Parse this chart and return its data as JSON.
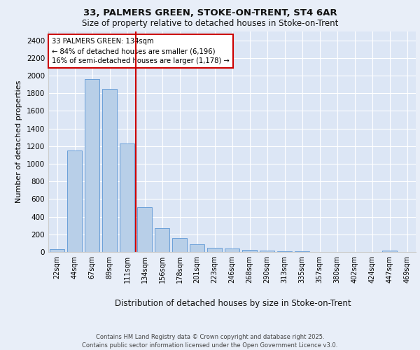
{
  "title1": "33, PALMERS GREEN, STOKE-ON-TRENT, ST4 6AR",
  "title2": "Size of property relative to detached houses in Stoke-on-Trent",
  "xlabel": "Distribution of detached houses by size in Stoke-on-Trent",
  "ylabel": "Number of detached properties",
  "categories": [
    "22sqm",
    "44sqm",
    "67sqm",
    "89sqm",
    "111sqm",
    "134sqm",
    "156sqm",
    "178sqm",
    "201sqm",
    "223sqm",
    "246sqm",
    "268sqm",
    "290sqm",
    "313sqm",
    "335sqm",
    "357sqm",
    "380sqm",
    "402sqm",
    "424sqm",
    "447sqm",
    "469sqm"
  ],
  "values": [
    28,
    1150,
    1960,
    1850,
    1230,
    510,
    270,
    155,
    90,
    48,
    38,
    22,
    12,
    5,
    5,
    2,
    2,
    1,
    1,
    18,
    0
  ],
  "bar_color": "#b8cfe8",
  "bar_edge_color": "#6a9fd8",
  "bg_color": "#dce6f5",
  "fig_color": "#e8eef8",
  "grid_color": "#ffffff",
  "vline_color": "#cc0000",
  "annotation_text": "33 PALMERS GREEN: 134sqm\n← 84% of detached houses are smaller (6,196)\n16% of semi-detached houses are larger (1,178) →",
  "ylim": [
    0,
    2500
  ],
  "yticks": [
    0,
    200,
    400,
    600,
    800,
    1000,
    1200,
    1400,
    1600,
    1800,
    2000,
    2200,
    2400
  ],
  "footer1": "Contains HM Land Registry data © Crown copyright and database right 2025.",
  "footer2": "Contains public sector information licensed under the Open Government Licence v3.0.",
  "vline_index": 4.5
}
